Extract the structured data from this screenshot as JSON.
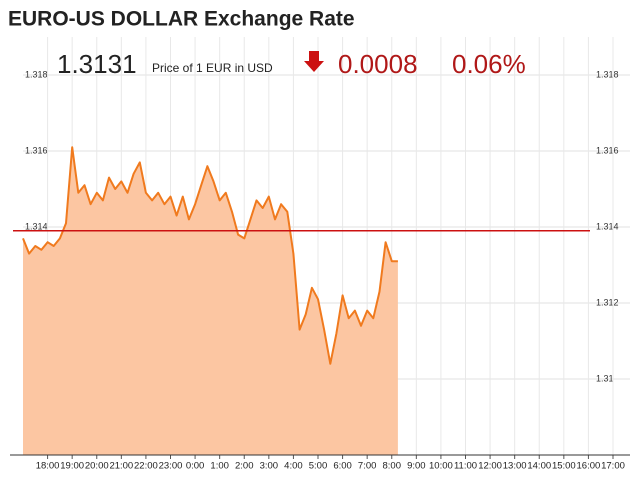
{
  "chart_data": {
    "type": "area",
    "title": "EURO-US DOLLAR Exchange Rate",
    "price": "1.3131",
    "price_caption": "Price of 1 EUR in USD",
    "change": "0.0008",
    "change_percent": "0.06%",
    "x": [
      "17:00",
      "17:15",
      "17:30",
      "17:45",
      "18:00",
      "18:15",
      "18:30",
      "18:45",
      "19:00",
      "19:15",
      "19:30",
      "19:45",
      "20:00",
      "20:15",
      "20:30",
      "20:45",
      "21:00",
      "21:15",
      "21:30",
      "21:45",
      "22:00",
      "22:15",
      "22:30",
      "22:45",
      "23:00",
      "23:15",
      "23:30",
      "23:45",
      "0:00",
      "0:15",
      "0:30",
      "0:45",
      "1:00",
      "1:15",
      "1:30",
      "1:45",
      "2:00",
      "2:15",
      "2:30",
      "2:45",
      "3:00",
      "3:15",
      "3:30",
      "3:45",
      "4:00",
      "4:15",
      "4:30",
      "4:45",
      "5:00",
      "5:15",
      "5:30",
      "5:45",
      "6:00",
      "6:15",
      "6:30",
      "6:45",
      "7:00",
      "7:15",
      "7:30",
      "7:45",
      "8:00",
      "8:15"
    ],
    "series": [
      {
        "color": "#f07a1e",
        "fill": "#fcc6a2",
        "values": [
          1.3137,
          1.3133,
          1.3135,
          1.3134,
          1.3136,
          1.3135,
          1.3137,
          1.3141,
          1.3161,
          1.3149,
          1.3151,
          1.3146,
          1.3149,
          1.3147,
          1.3153,
          1.315,
          1.3152,
          1.3149,
          1.3154,
          1.3157,
          1.3149,
          1.3147,
          1.3149,
          1.3146,
          1.3148,
          1.3143,
          1.3148,
          1.3142,
          1.3146,
          1.3151,
          1.3156,
          1.3152,
          1.3147,
          1.3149,
          1.3144,
          1.3138,
          1.3137,
          1.3142,
          1.3147,
          1.3145,
          1.3148,
          1.3142,
          1.3146,
          1.3144,
          1.3133,
          1.3113,
          1.3117,
          1.3124,
          1.3121,
          1.3113,
          1.3104,
          1.3112,
          1.3122,
          1.3116,
          1.3118,
          1.3114,
          1.3118,
          1.3116,
          1.3123,
          1.3136,
          1.3131,
          1.3131
        ]
      }
    ],
    "reference_line": 1.3139,
    "reference_color": "#cc1111",
    "xlim": [
      "17:00",
      "17:00"
    ],
    "xticks": [
      "18:00",
      "19:00",
      "20:00",
      "21:00",
      "22:00",
      "23:00",
      "0:00",
      "1:00",
      "2:00",
      "3:00",
      "4:00",
      "5:00",
      "6:00",
      "7:00",
      "8:00",
      "9:00",
      "10:00",
      "11:00",
      "12:00",
      "13:00",
      "14:00",
      "15:00",
      "16:00",
      "17:00"
    ],
    "ylim": [
      1.308,
      1.319
    ],
    "yticks": [
      1.31,
      1.312,
      1.314,
      1.316,
      1.318
    ],
    "grid": true
  }
}
